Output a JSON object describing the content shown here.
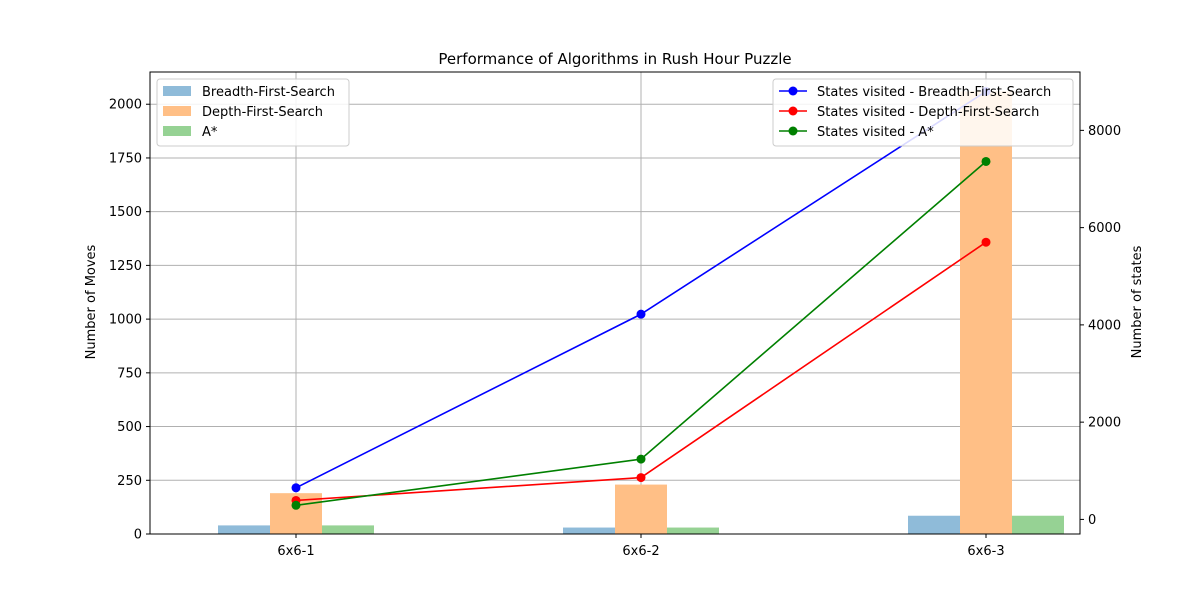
{
  "chart_data": {
    "type": "bar+line",
    "title": "Performance of Algorithms in Rush Hour Puzzle",
    "categories": [
      "6x6-1",
      "6x6-2",
      "6x6-3"
    ],
    "left_axis": {
      "label": "Number of Moves",
      "ylim": [
        0,
        2150
      ],
      "ticks": [
        0,
        250,
        500,
        750,
        1000,
        1250,
        1500,
        1750,
        2000
      ]
    },
    "right_axis": {
      "label": "Number of states",
      "ylim": [
        -300,
        9200
      ],
      "ticks": [
        0,
        2000,
        4000,
        6000,
        8000
      ]
    },
    "bar_series": [
      {
        "name": "Breadth-First-Search",
        "color": "#8fbbd9",
        "values": [
          40,
          30,
          85
        ]
      },
      {
        "name": "Depth-First-Search",
        "color": "#ffbf86",
        "values": [
          190,
          230,
          2060
        ]
      },
      {
        "name": "A*",
        "color": "#96d294",
        "values": [
          40,
          30,
          85
        ]
      }
    ],
    "line_series": [
      {
        "name": "States visited - Breadth-First-Search",
        "color": "#0000ff",
        "values": [
          650,
          4220,
          8800
        ]
      },
      {
        "name": "States visited - Depth-First-Search",
        "color": "#ff0000",
        "values": [
          390,
          860,
          5700
        ]
      },
      {
        "name": "States visited - A*",
        "color": "#008000",
        "values": [
          290,
          1240,
          7360
        ]
      }
    ],
    "grid": true,
    "bar_legend_position": "top-left",
    "line_legend_position": "top-right"
  }
}
